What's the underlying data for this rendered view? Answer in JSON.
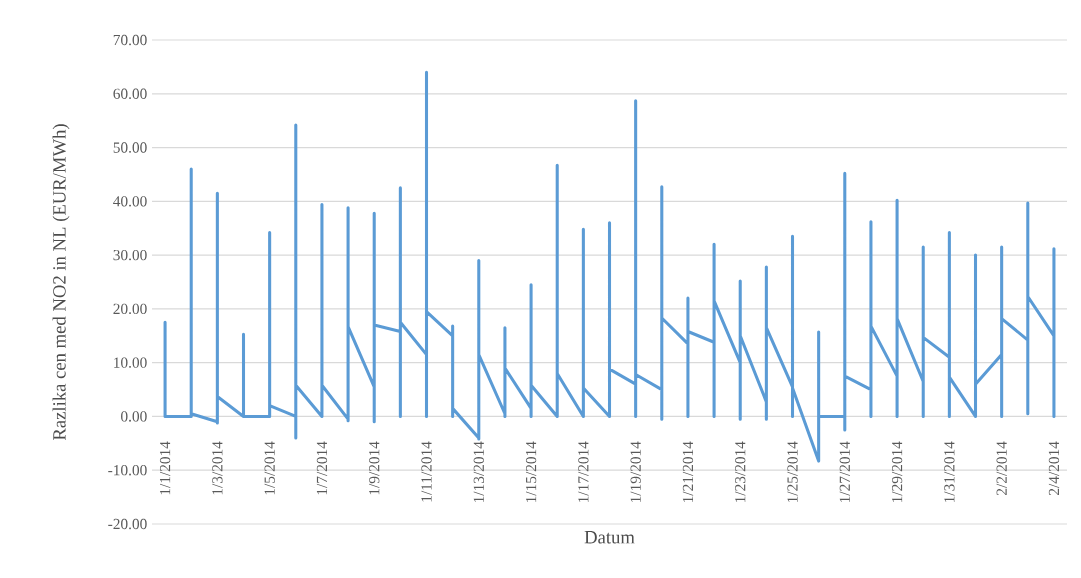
{
  "chart_data": {
    "type": "line",
    "xlabel": "Datum",
    "ylabel": "Razlika cen med NO2 in NL (EUR/MWh)",
    "color": "#5b9bd5",
    "grid": "y",
    "x": [
      "2014-01-01",
      "2014-01-01",
      "2014-01-01",
      "2014-01-01",
      "2014-01-02",
      "2014-01-02",
      "2014-01-02",
      "2014-01-02",
      "2014-01-03",
      "2014-01-03",
      "2014-01-03",
      "2014-01-03",
      "2014-01-04",
      "2014-01-04",
      "2014-01-04",
      "2014-01-04",
      "2014-01-05",
      "2014-01-05",
      "2014-01-05",
      "2014-01-05",
      "2014-01-06",
      "2014-01-06",
      "2014-01-06",
      "2014-01-06",
      "2014-01-07",
      "2014-01-07",
      "2014-01-07",
      "2014-01-07",
      "2014-01-08",
      "2014-01-08",
      "2014-01-08",
      "2014-01-08",
      "2014-01-09",
      "2014-01-09",
      "2014-01-09",
      "2014-01-09",
      "2014-01-10",
      "2014-01-10",
      "2014-01-10",
      "2014-01-10",
      "2014-01-11",
      "2014-01-11",
      "2014-01-11",
      "2014-01-11",
      "2014-01-12",
      "2014-01-12",
      "2014-01-12",
      "2014-01-12",
      "2014-01-13",
      "2014-01-13",
      "2014-01-13",
      "2014-01-13",
      "2014-01-14",
      "2014-01-14",
      "2014-01-14",
      "2014-01-14",
      "2014-01-15",
      "2014-01-15",
      "2014-01-15",
      "2014-01-15",
      "2014-01-16",
      "2014-01-16",
      "2014-01-16",
      "2014-01-16",
      "2014-01-17",
      "2014-01-17",
      "2014-01-17",
      "2014-01-17",
      "2014-01-18",
      "2014-01-18",
      "2014-01-18",
      "2014-01-18",
      "2014-01-19",
      "2014-01-19",
      "2014-01-19",
      "2014-01-19",
      "2014-01-20",
      "2014-01-20",
      "2014-01-20",
      "2014-01-20",
      "2014-01-21",
      "2014-01-21",
      "2014-01-21",
      "2014-01-21",
      "2014-01-22",
      "2014-01-22",
      "2014-01-22",
      "2014-01-22",
      "2014-01-23",
      "2014-01-23",
      "2014-01-23",
      "2014-01-23",
      "2014-01-24",
      "2014-01-24",
      "2014-01-24",
      "2014-01-24",
      "2014-01-25",
      "2014-01-25",
      "2014-01-25",
      "2014-01-25",
      "2014-01-26",
      "2014-01-26",
      "2014-01-26",
      "2014-01-26",
      "2014-01-27",
      "2014-01-27",
      "2014-01-27",
      "2014-01-27",
      "2014-01-28",
      "2014-01-28",
      "2014-01-28",
      "2014-01-28",
      "2014-01-29",
      "2014-01-29",
      "2014-01-29",
      "2014-01-29",
      "2014-01-30",
      "2014-01-30",
      "2014-01-30",
      "2014-01-30",
      "2014-01-31",
      "2014-01-31",
      "2014-01-31",
      "2014-01-31",
      "2014-02-01",
      "2014-02-01",
      "2014-02-01",
      "2014-02-01",
      "2014-02-02",
      "2014-02-02",
      "2014-02-02",
      "2014-02-02",
      "2014-02-03",
      "2014-02-03",
      "2014-02-03",
      "2014-02-03",
      "2014-02-04",
      "2014-02-04",
      "2014-02-04",
      "2014-02-04"
    ],
    "values": [
      0,
      17.5,
      0,
      0,
      0,
      46,
      0,
      0.5,
      -1,
      41.5,
      -1.2,
      3.7,
      0,
      15.3,
      0,
      0,
      0,
      34.2,
      0,
      2,
      0,
      54.2,
      -4,
      5.8,
      0,
      39.4,
      0,
      5.8,
      -0.5,
      38.8,
      -0.8,
      16.7,
      5.5,
      37.8,
      -1,
      17,
      15.8,
      42.5,
      0,
      17.5,
      11.5,
      64,
      0,
      19.5,
      15,
      16.8,
      0,
      1.5,
      -4,
      29,
      -4.2,
      11.5,
      0.5,
      16.5,
      0,
      9,
      1.5,
      24.5,
      0,
      5.8,
      0,
      46.7,
      0,
      8,
      0,
      34.8,
      0,
      5.3,
      0,
      36,
      0,
      8.8,
      6,
      58.7,
      0,
      7.8,
      5,
      42.7,
      -0.5,
      18.3,
      13.5,
      22,
      0,
      15.8,
      13.8,
      32,
      0,
      21.5,
      10,
      25.2,
      -0.5,
      15,
      2.7,
      27.8,
      -0.5,
      16.5,
      5.5,
      33.5,
      0,
      5.3,
      -8.3,
      15.7,
      -8.3,
      0,
      0,
      45.2,
      -2.5,
      7.5,
      5,
      36.2,
      0,
      16.8,
      7.5,
      40.2,
      0,
      18.2,
      6.5,
      31.5,
      0,
      14.7,
      11,
      34.2,
      0,
      7.3,
      0,
      30,
      0,
      6,
      11.5,
      31.5,
      0,
      18.2,
      14.2,
      39.7,
      0.5,
      22.3,
      15,
      31.2,
      0,
      15
    ],
    "xlim": [
      "2013-12-31T12:00",
      "2014-02-04T12:00"
    ],
    "xticks": [
      {
        "value": "2014-01-01",
        "label": "1/1/2014"
      },
      {
        "value": "2014-01-03",
        "label": "1/3/2014"
      },
      {
        "value": "2014-01-05",
        "label": "1/5/2014"
      },
      {
        "value": "2014-01-07",
        "label": "1/7/2014"
      },
      {
        "value": "2014-01-09",
        "label": "1/9/2014"
      },
      {
        "value": "2014-01-11",
        "label": "1/11/2014"
      },
      {
        "value": "2014-01-13",
        "label": "1/13/2014"
      },
      {
        "value": "2014-01-15",
        "label": "1/15/2014"
      },
      {
        "value": "2014-01-17",
        "label": "1/17/2014"
      },
      {
        "value": "2014-01-19",
        "label": "1/19/2014"
      },
      {
        "value": "2014-01-21",
        "label": "1/21/2014"
      },
      {
        "value": "2014-01-23",
        "label": "1/23/2014"
      },
      {
        "value": "2014-01-25",
        "label": "1/25/2014"
      },
      {
        "value": "2014-01-27",
        "label": "1/27/2014"
      },
      {
        "value": "2014-01-29",
        "label": "1/29/2014"
      },
      {
        "value": "2014-01-31",
        "label": "1/31/2014"
      },
      {
        "value": "2014-02-02",
        "label": "2/2/2014"
      },
      {
        "value": "2014-02-04",
        "label": "2/4/2014"
      }
    ],
    "ylim": [
      -20,
      70
    ],
    "yticks": [
      {
        "value": -20,
        "label": "-20.00"
      },
      {
        "value": -10,
        "label": "-10.00"
      },
      {
        "value": 0,
        "label": "0.00"
      },
      {
        "value": 10,
        "label": "10.00"
      },
      {
        "value": 20,
        "label": "20.00"
      },
      {
        "value": 30,
        "label": "30.00"
      },
      {
        "value": 40,
        "label": "40.00"
      },
      {
        "value": 50,
        "label": "50.00"
      },
      {
        "value": 60,
        "label": "60.00"
      },
      {
        "value": 70,
        "label": "70.00"
      }
    ]
  }
}
